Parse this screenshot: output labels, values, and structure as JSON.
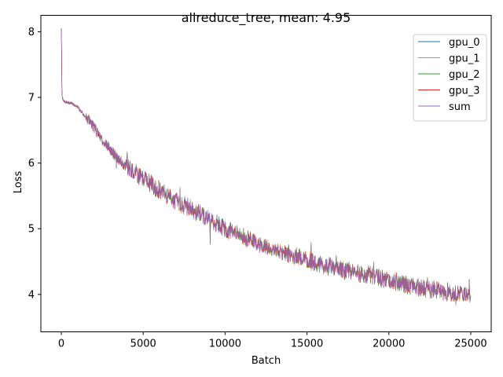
{
  "chart_data": {
    "type": "line",
    "title": "allreduce_tree, mean: 4.95",
    "xlabel": "Batch",
    "ylabel": "Loss",
    "xlim": [
      -1250,
      26250
    ],
    "ylim": [
      3.43,
      8.25
    ],
    "xticks": [
      0,
      5000,
      10000,
      15000,
      20000,
      25000
    ],
    "xtick_labels": [
      "0",
      "5000",
      "10000",
      "15000",
      "20000",
      "25000"
    ],
    "yticks": [
      4,
      5,
      6,
      7,
      8
    ],
    "ytick_labels": [
      "4",
      "5",
      "6",
      "7",
      "8"
    ],
    "grid": false,
    "legend_position": "top-right",
    "x_range": [
      0,
      25000
    ],
    "trend": {
      "x": [
        0,
        40,
        100,
        300,
        700,
        1000,
        1500,
        2000,
        2500,
        3000,
        3500,
        4000,
        4500,
        5000,
        5500,
        6000,
        6500,
        7000,
        7500,
        8000,
        8500,
        9000,
        9500,
        10000,
        11000,
        12000,
        13000,
        14000,
        15000,
        16000,
        17000,
        18000,
        19000,
        20000,
        21000,
        22000,
        23000,
        24000,
        25000
      ],
      "y": [
        8.05,
        7.05,
        6.95,
        6.93,
        6.9,
        6.85,
        6.7,
        6.55,
        6.35,
        6.2,
        6.05,
        5.95,
        5.85,
        5.78,
        5.68,
        5.58,
        5.5,
        5.42,
        5.36,
        5.3,
        5.22,
        5.15,
        5.08,
        5.0,
        4.88,
        4.78,
        4.68,
        4.6,
        4.52,
        4.45,
        4.38,
        4.33,
        4.28,
        4.22,
        4.16,
        4.1,
        4.06,
        4.02,
        4.0
      ]
    },
    "series": [
      {
        "name": "gpu_0",
        "color": "#1f77b4",
        "noise_seed": 11
      },
      {
        "name": "gpu_1",
        "color": "#ff7f0e",
        "noise_seed": 23
      },
      {
        "name": "gpu_2",
        "color": "#2ca02c",
        "noise_seed": 37
      },
      {
        "name": "gpu_3",
        "color": "#d62728",
        "noise_seed": 41
      },
      {
        "name": "sum",
        "color": "#9467bd",
        "noise_seed": 53
      }
    ]
  }
}
